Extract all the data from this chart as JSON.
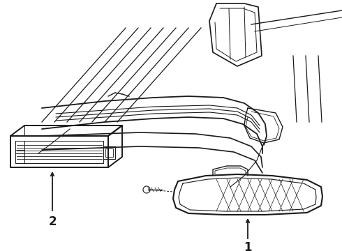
{
  "background_color": "#ffffff",
  "line_color": "#1a1a1a",
  "label_1_text": "1",
  "label_2_text": "2",
  "fig_width": 4.9,
  "fig_height": 3.6,
  "dpi": 100
}
